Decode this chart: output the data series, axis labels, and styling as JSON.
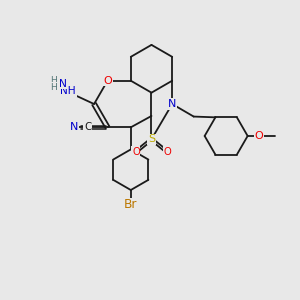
{
  "bg_color": "#e8e8e8",
  "bond_color": "#1a1a1a",
  "atom_colors": {
    "N": "#0000cc",
    "O": "#ee0000",
    "S": "#bbaa00",
    "Br": "#bb7700",
    "C": "#1a1a1a",
    "H": "#557777"
  },
  "lw": 1.3,
  "fs": 7.2
}
